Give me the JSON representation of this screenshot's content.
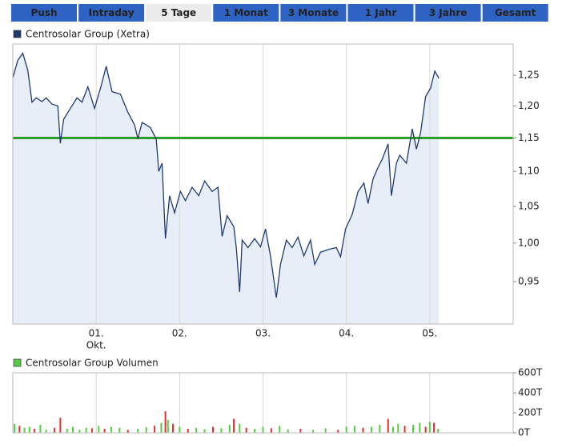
{
  "tabs": {
    "labels": [
      "Push",
      "Intraday",
      "5 Tage",
      "1 Monat",
      "3 Monate",
      "1 Jahr",
      "3 Jahre",
      "Gesamt"
    ],
    "active": 2
  },
  "chart_data": [
    {
      "type": "line",
      "legend": "Centrosolar Group (Xetra)",
      "color": "#1f3a6e",
      "area_color": "#e8eef8",
      "x": [
        0,
        0.06,
        0.12,
        0.18,
        0.23,
        0.28,
        0.35,
        0.4,
        0.47,
        0.54,
        0.57,
        0.61,
        0.69,
        0.77,
        0.83,
        0.9,
        0.98,
        1.06,
        1.12,
        1.19,
        1.29,
        1.38,
        1.46,
        1.5,
        1.55,
        1.65,
        1.72,
        1.75,
        1.79,
        1.83,
        1.88,
        1.94,
        2.01,
        2.07,
        2.15,
        2.23,
        2.3,
        2.39,
        2.46,
        2.51,
        2.57,
        2.65,
        2.68,
        2.72,
        2.75,
        2.82,
        2.9,
        2.97,
        3.03,
        3.09,
        3.16,
        3.21,
        3.28,
        3.35,
        3.42,
        3.49,
        3.57,
        3.62,
        3.69,
        3.8,
        3.88,
        3.93,
        3.99,
        4.07,
        4.14,
        4.21,
        4.26,
        4.32,
        4.38,
        4.43,
        4.5,
        4.54,
        4.6,
        4.64,
        4.72,
        4.79,
        4.84,
        4.89,
        4.95,
        5.01,
        5.06,
        5.11
      ],
      "values": [
        1.246,
        1.275,
        1.287,
        1.258,
        1.206,
        1.213,
        1.207,
        1.213,
        1.203,
        1.2,
        1.142,
        1.179,
        1.196,
        1.213,
        1.206,
        1.231,
        1.196,
        1.233,
        1.265,
        1.223,
        1.219,
        1.19,
        1.17,
        1.149,
        1.174,
        1.166,
        1.148,
        1.1,
        1.112,
        1.006,
        1.065,
        1.041,
        1.071,
        1.058,
        1.077,
        1.065,
        1.086,
        1.071,
        1.077,
        1.009,
        1.037,
        1.022,
        0.994,
        0.937,
        1.004,
        0.994,
        1.006,
        0.995,
        1.019,
        0.983,
        0.93,
        0.972,
        1.004,
        0.994,
        1.008,
        0.983,
        1.004,
        0.972,
        0.988,
        0.992,
        0.994,
        0.982,
        1.019,
        1.039,
        1.071,
        1.083,
        1.054,
        1.089,
        1.106,
        1.118,
        1.141,
        1.065,
        1.112,
        1.124,
        1.112,
        1.164,
        1.133,
        1.158,
        1.215,
        1.229,
        1.257,
        1.245
      ],
      "reference_line": {
        "value": 1.15,
        "color": "#2ca02c"
      },
      "xlim": [
        0,
        6
      ],
      "ylim": [
        0.898,
        1.303
      ],
      "log_scale": true,
      "xticks": [
        {
          "value": 1,
          "label": "01."
        },
        {
          "value": 2,
          "label": "02."
        },
        {
          "value": 3,
          "label": "03."
        },
        {
          "value": 4,
          "label": "04."
        },
        {
          "value": 5,
          "label": "05."
        }
      ],
      "x_sublabel": "Okt.",
      "yticks": [
        {
          "value": 0.95,
          "label": "0,95"
        },
        {
          "value": 1.0,
          "label": "1,00"
        },
        {
          "value": 1.05,
          "label": "1,05"
        },
        {
          "value": 1.1,
          "label": "1,10"
        },
        {
          "value": 1.15,
          "label": "1,15"
        },
        {
          "value": 1.2,
          "label": "1,20"
        },
        {
          "value": 1.25,
          "label": "1,25"
        }
      ]
    },
    {
      "type": "bar",
      "legend": "Centrosolar Group Volumen",
      "legend_color": "#55cc44",
      "x": [
        0.02,
        0.08,
        0.14,
        0.2,
        0.26,
        0.33,
        0.4,
        0.5,
        0.57,
        0.65,
        0.72,
        0.8,
        0.88,
        0.95,
        1.03,
        1.1,
        1.18,
        1.28,
        1.38,
        1.5,
        1.6,
        1.7,
        1.78,
        1.83,
        1.86,
        1.92,
        2.0,
        2.1,
        2.2,
        2.3,
        2.4,
        2.5,
        2.6,
        2.65,
        2.72,
        2.8,
        2.9,
        3.0,
        3.1,
        3.2,
        3.3,
        3.45,
        3.6,
        3.75,
        3.9,
        4.0,
        4.1,
        4.2,
        4.3,
        4.4,
        4.5,
        4.56,
        4.62,
        4.7,
        4.8,
        4.88,
        4.95,
        5.0,
        5.05,
        5.1
      ],
      "values": [
        90000,
        70000,
        50000,
        60000,
        40000,
        80000,
        30000,
        50000,
        150000,
        40000,
        60000,
        30000,
        50000,
        45000,
        70000,
        40000,
        60000,
        50000,
        30000,
        40000,
        55000,
        70000,
        100000,
        215000,
        130000,
        90000,
        60000,
        40000,
        50000,
        35000,
        60000,
        45000,
        80000,
        140000,
        90000,
        50000,
        40000,
        60000,
        45000,
        70000,
        35000,
        40000,
        30000,
        45000,
        30000,
        60000,
        70000,
        50000,
        60000,
        80000,
        140000,
        60000,
        90000,
        70000,
        80000,
        100000,
        60000,
        110000,
        100000,
        40000
      ],
      "colors": [
        "#55cc44",
        "#dd3333",
        "#55cc44",
        "#55cc44",
        "#dd3333",
        "#55cc44",
        "#55cc44",
        "#dd3333",
        "#dd3333",
        "#55cc44",
        "#55cc44",
        "#55cc44",
        "#55cc44",
        "#dd3333",
        "#55cc44",
        "#dd3333",
        "#55cc44",
        "#55cc44",
        "#dd3333",
        "#55cc44",
        "#55cc44",
        "#dd3333",
        "#55cc44",
        "#dd3333",
        "#55cc44",
        "#dd3333",
        "#55cc44",
        "#dd3333",
        "#55cc44",
        "#55cc44",
        "#dd3333",
        "#55cc44",
        "#55cc44",
        "#dd3333",
        "#55cc44",
        "#dd3333",
        "#55cc44",
        "#55cc44",
        "#dd3333",
        "#55cc44",
        "#55cc44",
        "#dd3333",
        "#55cc44",
        "#55cc44",
        "#dd3333",
        "#55cc44",
        "#55cc44",
        "#dd3333",
        "#55cc44",
        "#55cc44",
        "#dd3333",
        "#55cc44",
        "#55cc44",
        "#dd3333",
        "#55cc44",
        "#55cc44",
        "#dd3333",
        "#55cc44",
        "#dd3333",
        "#55cc44"
      ],
      "xlim": [
        0,
        6
      ],
      "ylim": [
        0,
        600000
      ],
      "xticks": [
        1,
        2,
        3,
        4,
        5
      ],
      "yticks": [
        {
          "value": 0,
          "label": "0T"
        },
        {
          "value": 200000,
          "label": "200T"
        },
        {
          "value": 400000,
          "label": "400T"
        },
        {
          "value": 600000,
          "label": "600T"
        }
      ]
    }
  ]
}
